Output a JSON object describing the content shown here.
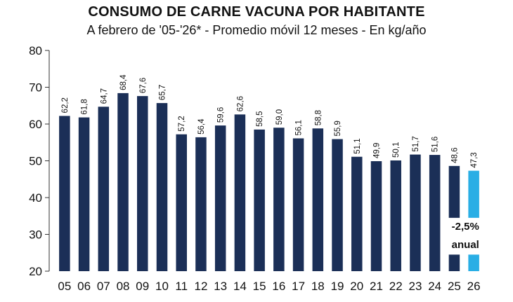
{
  "title": "CONSUMO DE CARNE VACUNA POR HABITANTE",
  "subtitle": "A febrero de '05-'26* - Promedio móvil 12 meses -  En kg/año",
  "colors": {
    "bar": "#1b2f57",
    "highlight": "#29aee5",
    "axis": "#333333"
  },
  "chart_data": {
    "type": "bar",
    "title": "CONSUMO DE CARNE VACUNA POR HABITANTE",
    "subtitle": "A febrero de '05-'26* - Promedio móvil 12 meses -  En kg/año",
    "categories": [
      "05",
      "06",
      "07",
      "08",
      "09",
      "10",
      "11",
      "12",
      "13",
      "14",
      "15",
      "16",
      "17",
      "18",
      "19",
      "20",
      "21",
      "22",
      "23",
      "24",
      "25",
      "26"
    ],
    "values": [
      62.2,
      61.8,
      64.7,
      68.4,
      67.6,
      65.7,
      57.2,
      56.4,
      59.6,
      62.6,
      58.5,
      59.0,
      56.1,
      58.8,
      55.9,
      51.1,
      49.9,
      50.1,
      51.7,
      51.6,
      48.6,
      47.3
    ],
    "value_labels": [
      "62,2",
      "61,8",
      "64,7",
      "68,4",
      "67,6",
      "65,7",
      "57,2",
      "56,4",
      "59,6",
      "62,6",
      "58,5",
      "59,0",
      "56,1",
      "58,8",
      "55,9",
      "51,1",
      "49,9",
      "50,1",
      "51,7",
      "51,6",
      "48,6",
      "47,3"
    ],
    "ylim": [
      20,
      80
    ],
    "yticks": [
      20,
      30,
      40,
      50,
      60,
      70,
      80
    ],
    "ytick_labels": [
      "20",
      "30",
      "40",
      "50",
      "60",
      "70",
      "80"
    ],
    "grid": false,
    "legend": "none",
    "highlight_index": 21,
    "annotation": {
      "line1": "-2,5%",
      "line2": "anual"
    }
  }
}
